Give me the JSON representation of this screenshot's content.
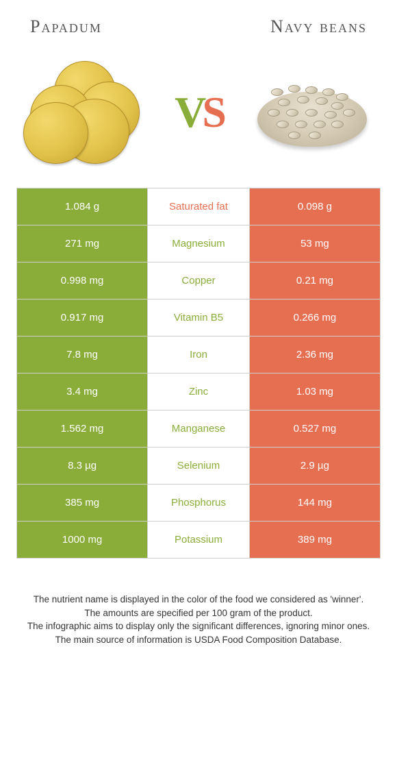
{
  "header": {
    "left": "Papadum",
    "right": "Navy beans"
  },
  "vs": {
    "v": "V",
    "s": "S"
  },
  "colors": {
    "left": "#8aad3a",
    "right": "#e76f51",
    "winner_left_text": "#8aad3a",
    "winner_right_text": "#e76f51"
  },
  "rows": [
    {
      "left": "1.084 g",
      "label": "Saturated fat",
      "right": "0.098 g",
      "winner": "right"
    },
    {
      "left": "271 mg",
      "label": "Magnesium",
      "right": "53 mg",
      "winner": "left"
    },
    {
      "left": "0.998 mg",
      "label": "Copper",
      "right": "0.21 mg",
      "winner": "left"
    },
    {
      "left": "0.917 mg",
      "label": "Vitamin B5",
      "right": "0.266 mg",
      "winner": "left"
    },
    {
      "left": "7.8 mg",
      "label": "Iron",
      "right": "2.36 mg",
      "winner": "left"
    },
    {
      "left": "3.4 mg",
      "label": "Zinc",
      "right": "1.03 mg",
      "winner": "left"
    },
    {
      "left": "1.562 mg",
      "label": "Manganese",
      "right": "0.527 mg",
      "winner": "left"
    },
    {
      "left": "8.3 µg",
      "label": "Selenium",
      "right": "2.9 µg",
      "winner": "left"
    },
    {
      "left": "385 mg",
      "label": "Phosphorus",
      "right": "144 mg",
      "winner": "left"
    },
    {
      "left": "1000 mg",
      "label": "Potassium",
      "right": "389 mg",
      "winner": "left"
    }
  ],
  "footer": [
    "The nutrient name is displayed in the color of the food we considered as 'winner'.",
    "The amounts are specified per 100 gram of the product.",
    "The infographic aims to display only the significant differences, ignoring minor ones.",
    "The main source of information is USDA Food Composition Database."
  ]
}
